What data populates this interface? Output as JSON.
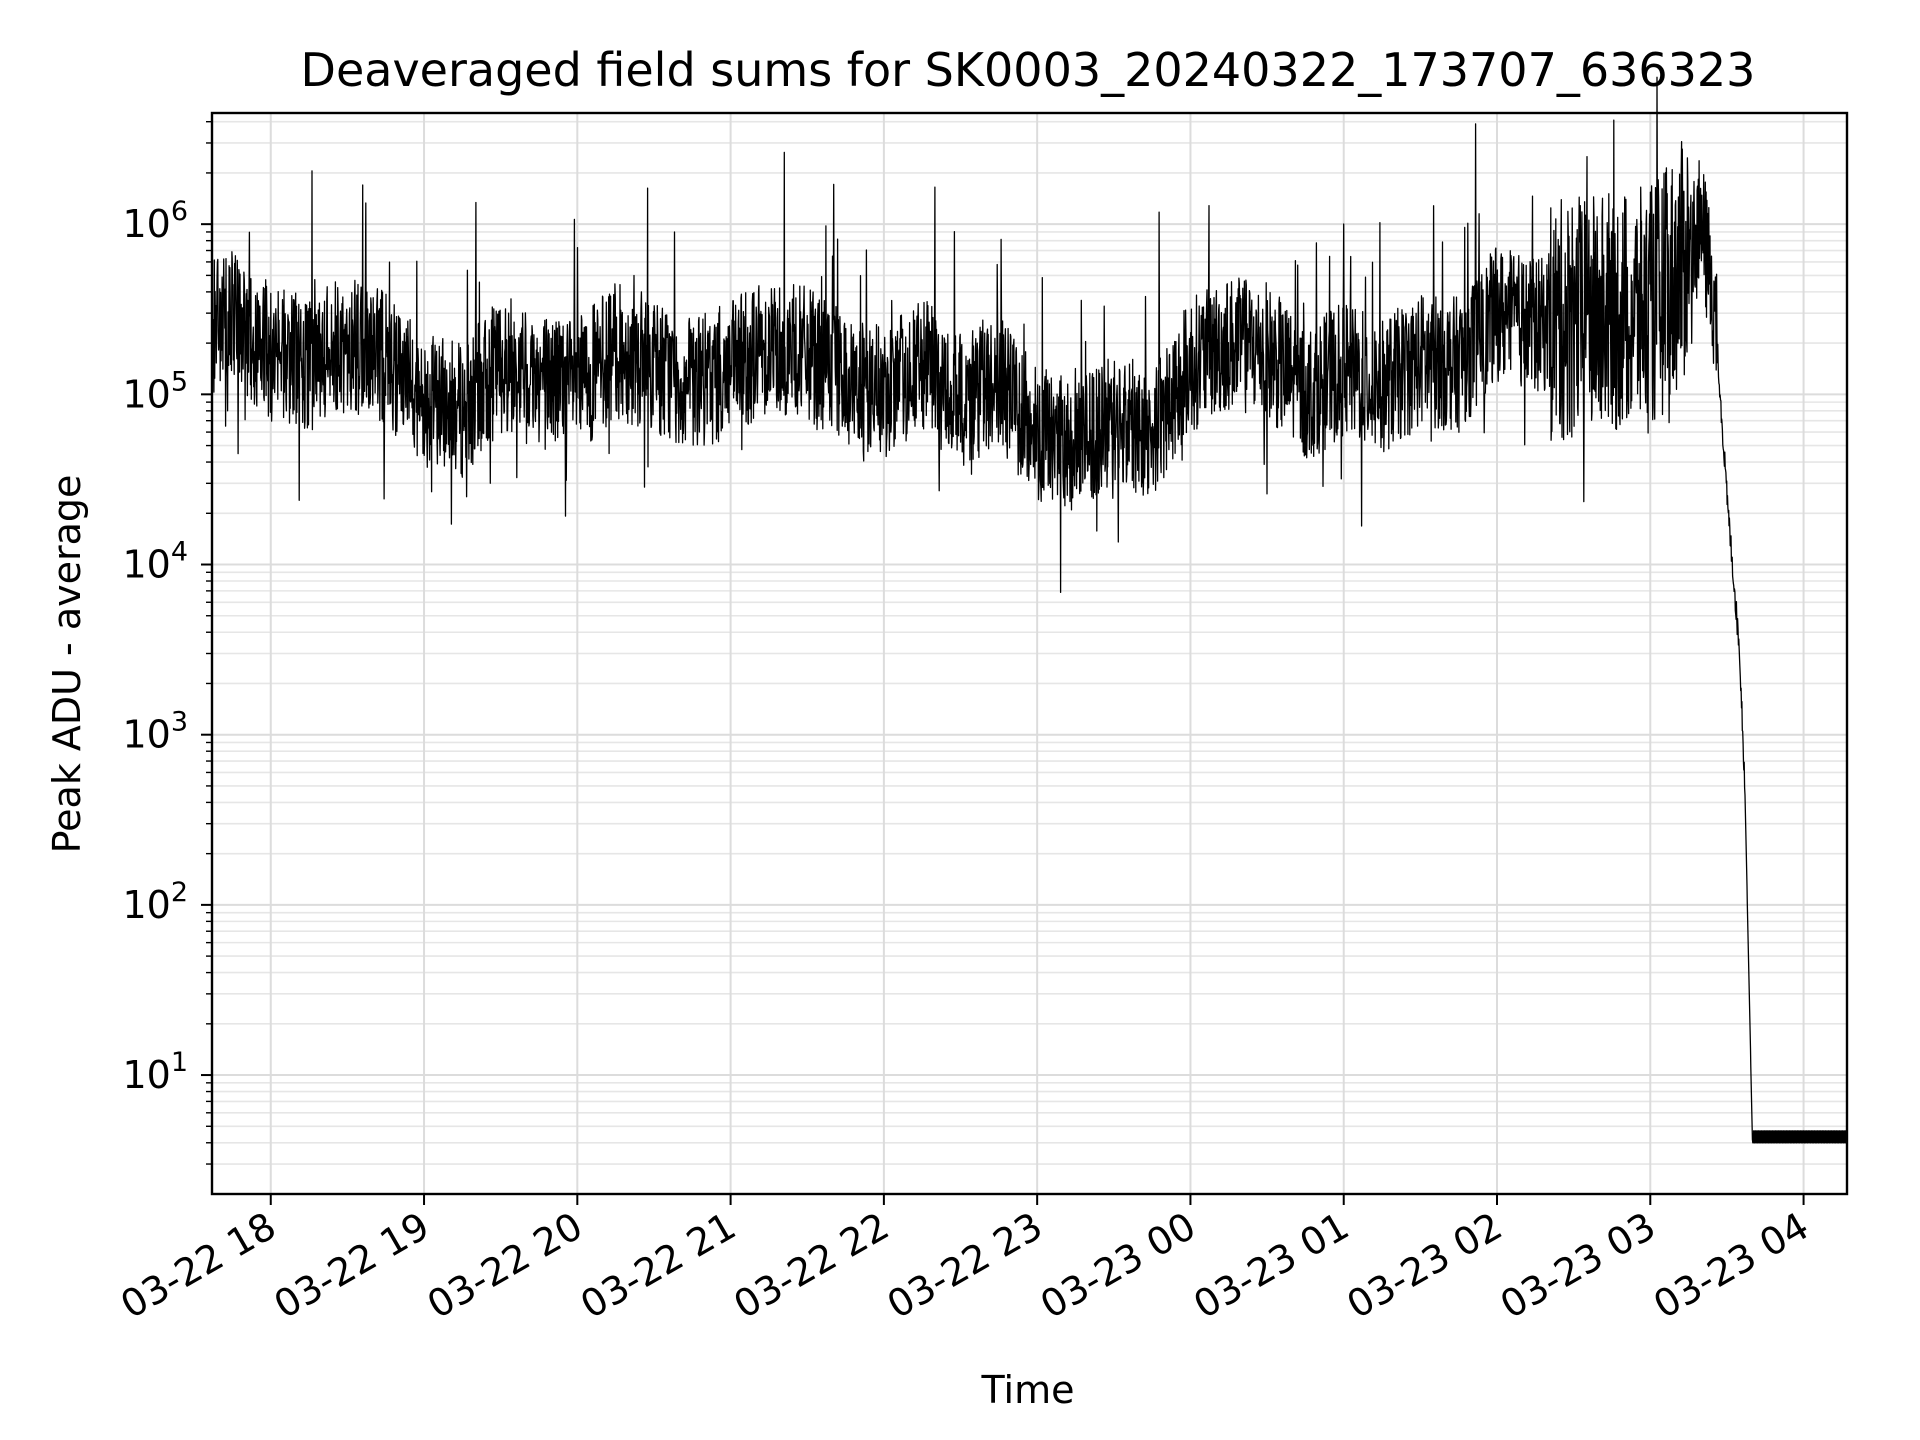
{
  "chart_data": {
    "type": "line",
    "title": "Deaveraged field sums for SK0003_20240322_173707_636323",
    "xlabel": "Time",
    "ylabel": "Peak ADU - average",
    "yscale": "log",
    "ylim": [
      2,
      4500000
    ],
    "xlim": [
      "2024-03-22 17:37",
      "2024-03-23 04:17"
    ],
    "grid": true,
    "grid_which": "both",
    "line_color": "#000000",
    "x_ticks": [
      "2024-03-22 18:00",
      "2024-03-22 19:00",
      "2024-03-22 20:00",
      "2024-03-22 21:00",
      "2024-03-22 22:00",
      "2024-03-22 23:00",
      "2024-03-23 00:00",
      "2024-03-23 01:00",
      "2024-03-23 02:00",
      "2024-03-23 03:00",
      "2024-03-23 04:00"
    ],
    "x_tick_labels": [
      "03-22 18",
      "03-22 19",
      "03-22 20",
      "03-22 21",
      "03-22 22",
      "03-22 23",
      "03-23 00",
      "03-23 01",
      "03-23 02",
      "03-23 03",
      "03-23 04"
    ],
    "y_ticks": [
      10,
      100,
      1000,
      10000,
      100000,
      1000000
    ],
    "y_tick_labels": [
      {
        "base": "10",
        "exp": "1"
      },
      {
        "base": "10",
        "exp": "2"
      },
      {
        "base": "10",
        "exp": "3"
      },
      {
        "base": "10",
        "exp": "4"
      },
      {
        "base": "10",
        "exp": "5"
      },
      {
        "base": "10",
        "exp": "6"
      }
    ],
    "series": [
      {
        "x": [
          "2024-03-22 17:37",
          "2024-03-22 17:45",
          "2024-03-22 18:00",
          "2024-03-22 18:15",
          "2024-03-22 18:30",
          "2024-03-22 18:45",
          "2024-03-22 19:00",
          "2024-03-22 19:15",
          "2024-03-22 19:30",
          "2024-03-22 19:45",
          "2024-03-22 20:00",
          "2024-03-22 20:15",
          "2024-03-22 20:30",
          "2024-03-22 20:45",
          "2024-03-22 21:00",
          "2024-03-22 21:15",
          "2024-03-22 21:30",
          "2024-03-22 21:45",
          "2024-03-22 22:00",
          "2024-03-22 22:15",
          "2024-03-22 22:30",
          "2024-03-22 22:45",
          "2024-03-22 23:00",
          "2024-03-22 23:15",
          "2024-03-22 23:30",
          "2024-03-22 23:45",
          "2024-03-23 00:00",
          "2024-03-23 00:15",
          "2024-03-23 00:30",
          "2024-03-23 00:45",
          "2024-03-23 01:00",
          "2024-03-23 01:15",
          "2024-03-23 01:30",
          "2024-03-23 01:45",
          "2024-03-23 02:00",
          "2024-03-23 02:15",
          "2024-03-23 02:30",
          "2024-03-23 02:45",
          "2024-03-23 03:00",
          "2024-03-23 03:10",
          "2024-03-23 03:20",
          "2024-03-23 03:25",
          "2024-03-23 03:30",
          "2024-03-23 03:35",
          "2024-03-23 03:37",
          "2024-03-23 03:40",
          "2024-03-23 04:17"
        ],
        "y": [
          250000,
          280000,
          180000,
          150000,
          200000,
          160000,
          95000,
          80000,
          150000,
          130000,
          110000,
          180000,
          150000,
          110000,
          140000,
          200000,
          170000,
          120000,
          100000,
          150000,
          90000,
          120000,
          60000,
          50000,
          70000,
          60000,
          150000,
          200000,
          180000,
          100000,
          140000,
          110000,
          160000,
          150000,
          300000,
          250000,
          280000,
          300000,
          320000,
          500000,
          1000000,
          350000,
          25000,
          3000,
          500,
          4,
          4
        ]
      }
    ]
  }
}
